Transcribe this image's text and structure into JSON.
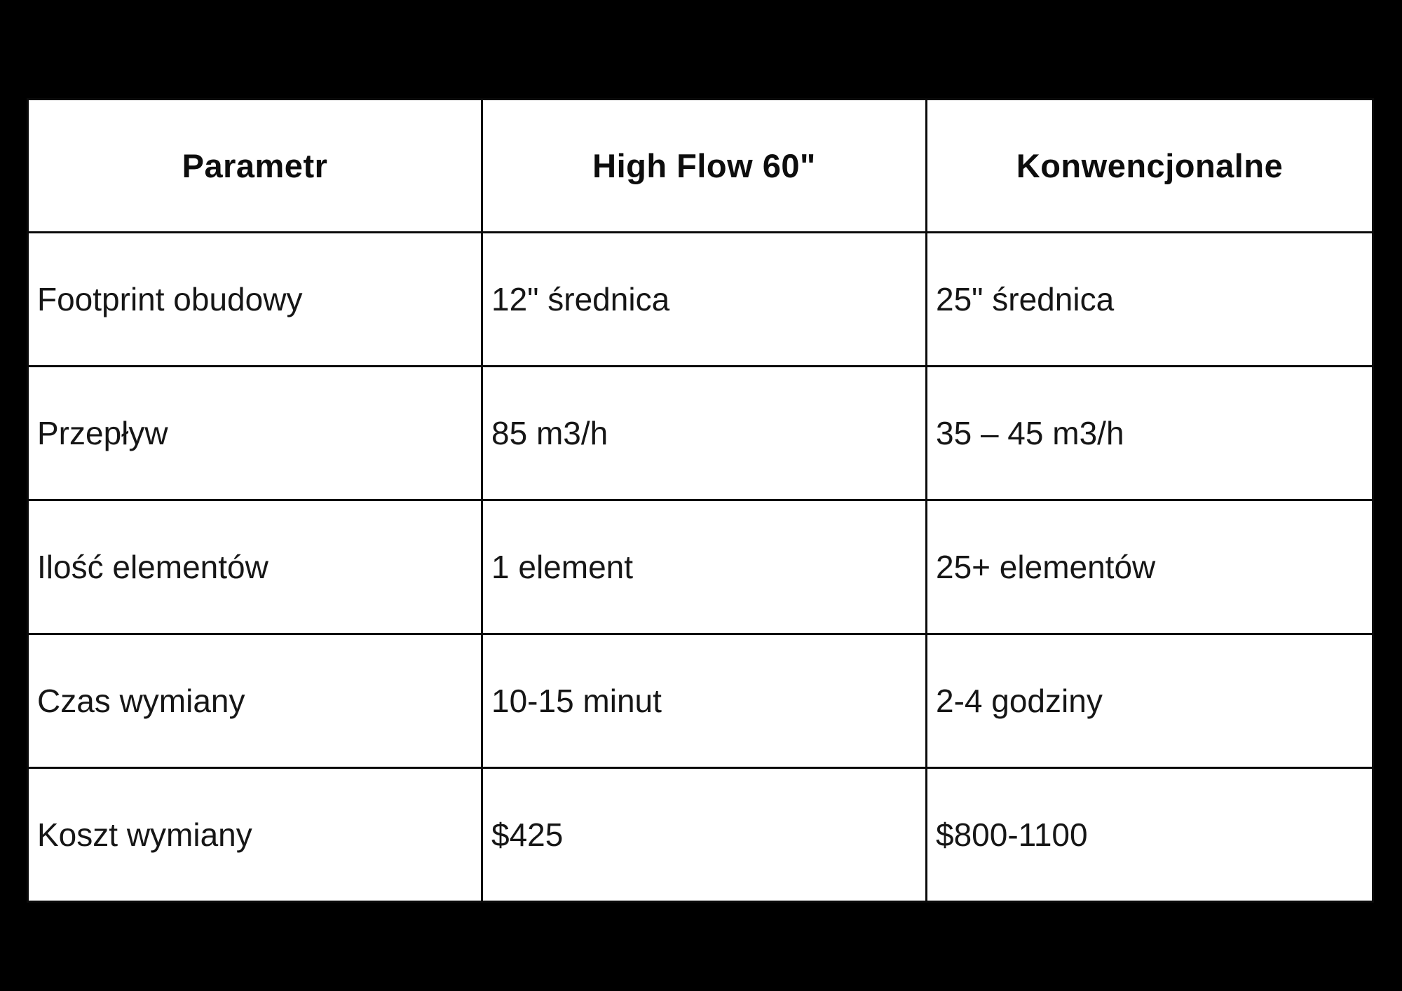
{
  "page": {
    "background_color": "#000000",
    "table_background_color": "#ffffff",
    "border_color": "#0a0a0a",
    "text_color": "#161616"
  },
  "table": {
    "headers": {
      "parameter": "Parametr",
      "high_flow": "High Flow 60\"",
      "conventional": "Konwencjonalne"
    },
    "rows": [
      {
        "parameter": "Footprint obudowy",
        "high_flow": "12\" średnica",
        "conventional": "25\" średnica"
      },
      {
        "parameter": "Przepływ",
        "high_flow": "85 m3/h",
        "conventional": "35 – 45 m3/h"
      },
      {
        "parameter": "Ilość elementów",
        "high_flow": "1 element",
        "conventional": "25+ elementów"
      },
      {
        "parameter": "Czas wymiany",
        "high_flow": "10-15 minut",
        "conventional": "2-4 godziny"
      },
      {
        "parameter": "Koszt wymiany",
        "high_flow": "$425",
        "conventional": "$800-1100"
      }
    ]
  },
  "chart_data": {
    "type": "table",
    "title": "",
    "columns": [
      "Parametr",
      "High Flow 60\"",
      "Konwencjonalne"
    ],
    "cells": [
      [
        "Footprint obudowy",
        "12\" średnica",
        "25\" średnica"
      ],
      [
        "Przepływ",
        "85 m3/h",
        "35 – 45 m3/h"
      ],
      [
        "Ilość elementów",
        "1 element",
        "25+ elementów"
      ],
      [
        "Czas wymiany",
        "10-15 minut",
        "2-4 godziny"
      ],
      [
        "Koszt wymiany",
        "$425",
        "$800-1100"
      ]
    ]
  }
}
